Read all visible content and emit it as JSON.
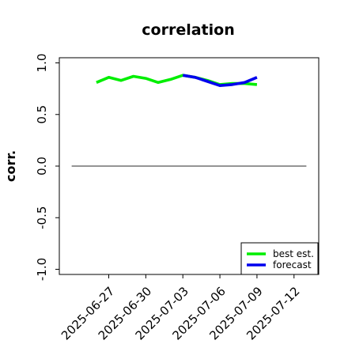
{
  "chart_data": {
    "type": "line",
    "title": "correlation",
    "xlabel": "",
    "ylabel": "corr.",
    "ylim": [
      -1.05,
      1.05
    ],
    "yticks": [
      "-1.0",
      "-0.5",
      "0.0",
      "0.5",
      "1.0"
    ],
    "yticks_values": [
      -1.0,
      -0.5,
      0.0,
      0.5,
      1.0
    ],
    "xlim": [
      "2025-06-23",
      "2025-07-14"
    ],
    "xticks": [
      "2025-06-27",
      "2025-06-30",
      "2025-07-03",
      "2025-07-06",
      "2025-07-09",
      "2025-07-12"
    ],
    "highlight_tick": "2025-07-03",
    "highlight_color": "#1a8a1a",
    "reference_line": {
      "y": 0.0,
      "x_start": "2025-06-24",
      "x_end": "2025-07-13",
      "color": "#555555"
    },
    "legend_position": "lower-right",
    "series": [
      {
        "name": "best est.",
        "color": "#00ee00",
        "x": [
          "2025-06-26",
          "2025-06-27",
          "2025-06-28",
          "2025-06-29",
          "2025-06-30",
          "2025-07-01",
          "2025-07-02",
          "2025-07-03",
          "2025-07-04",
          "2025-07-05",
          "2025-07-06",
          "2025-07-07",
          "2025-07-08",
          "2025-07-09"
        ],
        "y": [
          0.81,
          0.86,
          0.83,
          0.87,
          0.85,
          0.81,
          0.84,
          0.88,
          0.86,
          0.83,
          0.79,
          0.8,
          0.8,
          0.79
        ]
      },
      {
        "name": "forecast",
        "color": "#0000ee",
        "x": [
          "2025-07-03",
          "2025-07-04",
          "2025-07-05",
          "2025-07-06",
          "2025-07-07",
          "2025-07-08",
          "2025-07-09"
        ],
        "y": [
          0.88,
          0.86,
          0.82,
          0.78,
          0.79,
          0.81,
          0.86
        ]
      }
    ]
  }
}
